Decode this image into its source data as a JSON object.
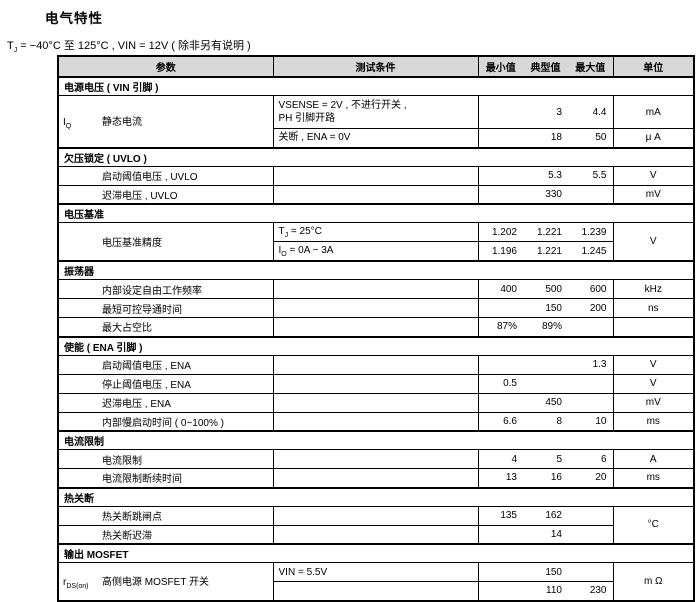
{
  "page": {
    "title": "电气特性",
    "subtitle": {
      "pre": "T",
      "sub": "J",
      "rest": " = −40°C 至 125°C , VIN = 12V ( 除非另有说明 )"
    }
  },
  "table": {
    "headers": {
      "param": "参数",
      "cond": "测试条件",
      "min": "最小值",
      "typ": "典型值",
      "max": "最大值",
      "unit": "单位"
    },
    "rows": [
      {
        "type": "section",
        "label": "电源电压 ( VIN 引脚 )"
      },
      {
        "type": "data",
        "sym": "I",
        "sym_sub": "Q",
        "param": "静态电流",
        "param_rowspan": 2,
        "cond": "VSENSE = 2V , 不进行开关 ,\nPH 引脚开路",
        "min": "",
        "typ": "3",
        "max": "4.4",
        "unit": "mA",
        "tall": true
      },
      {
        "type": "data",
        "cond": "关断 , ENA = 0V",
        "min": "",
        "typ": "18",
        "max": "50",
        "unit": "μ A"
      },
      {
        "type": "section",
        "label": "欠压锁定 ( UVLO )"
      },
      {
        "type": "data",
        "param": "启动阈值电压 , UVLO",
        "cond": "",
        "min": "",
        "typ": "5.3",
        "max": "5.5",
        "unit": "V"
      },
      {
        "type": "data",
        "param": "迟滞电压 , UVLO",
        "cond": "",
        "min": "",
        "typ": "330",
        "max": "",
        "unit": "mV"
      },
      {
        "type": "section",
        "label": "电压基准"
      },
      {
        "type": "data",
        "param": "电压基准精度",
        "param_rowspan": 2,
        "cond_pre": "T",
        "cond_sub": "J",
        "cond_rest": " = 25°C",
        "min": "1.202",
        "typ": "1.221",
        "max": "1.239",
        "unit": "V",
        "unit_rowspan": 2
      },
      {
        "type": "data",
        "cond_pre": "I",
        "cond_sub": "O",
        "cond_rest": " = 0A − 3A",
        "min": "1.196",
        "typ": "1.221",
        "max": "1.245"
      },
      {
        "type": "section",
        "label": "振荡器"
      },
      {
        "type": "data",
        "param": "内部设定自由工作频率",
        "cond": "",
        "min": "400",
        "typ": "500",
        "max": "600",
        "unit": "kHz"
      },
      {
        "type": "data",
        "param": "最短可控导通时间",
        "cond": "",
        "min": "",
        "typ": "150",
        "max": "200",
        "unit": "ns"
      },
      {
        "type": "data",
        "param": "最大占空比",
        "cond": "",
        "min": "87%",
        "typ": "89%",
        "max": "",
        "unit": ""
      },
      {
        "type": "section",
        "label": "使能 ( ENA 引脚 )"
      },
      {
        "type": "data",
        "param": "启动阈值电压 , ENA",
        "cond": "",
        "min": "",
        "typ": "",
        "max": "1.3",
        "unit": "V"
      },
      {
        "type": "data",
        "param": "停止阈值电压 , ENA",
        "cond": "",
        "min": "0.5",
        "typ": "",
        "max": "",
        "unit": "V"
      },
      {
        "type": "data",
        "param": "迟滞电压 , ENA",
        "cond": "",
        "min": "",
        "typ": "450",
        "max": "",
        "unit": "mV"
      },
      {
        "type": "data",
        "param": "内部慢启动时间 ( 0~100% )",
        "cond": "",
        "min": "6.6",
        "typ": "8",
        "max": "10",
        "unit": "ms"
      },
      {
        "type": "section",
        "label": "电流限制"
      },
      {
        "type": "data",
        "param": "电流限制",
        "cond": "",
        "min": "4",
        "typ": "5",
        "max": "6",
        "unit": "A"
      },
      {
        "type": "data",
        "param": "电流限制断续时间",
        "cond": "",
        "min": "13",
        "typ": "16",
        "max": "20",
        "unit": "ms"
      },
      {
        "type": "section",
        "label": "热关断"
      },
      {
        "type": "data",
        "param": "热关断跳闸点",
        "cond": "",
        "min": "135",
        "typ": "162",
        "max": "",
        "unit": "°C",
        "unit_rowspan": 2
      },
      {
        "type": "data",
        "param": "热关断迟滞",
        "cond": "",
        "min": "",
        "typ": "14",
        "max": ""
      },
      {
        "type": "section",
        "label": "输出 MOSFET"
      },
      {
        "type": "data",
        "sym": "r",
        "sym_sub": "DS(on)",
        "param": "高侧电源 MOSFET 开关",
        "param_rowspan": 2,
        "cond": "VIN = 5.5V",
        "min": "",
        "typ": "150",
        "max": "",
        "unit": "m Ω",
        "unit_rowspan": 2
      },
      {
        "type": "data",
        "cond": "",
        "min": "",
        "typ": "110",
        "max": "230"
      }
    ]
  }
}
